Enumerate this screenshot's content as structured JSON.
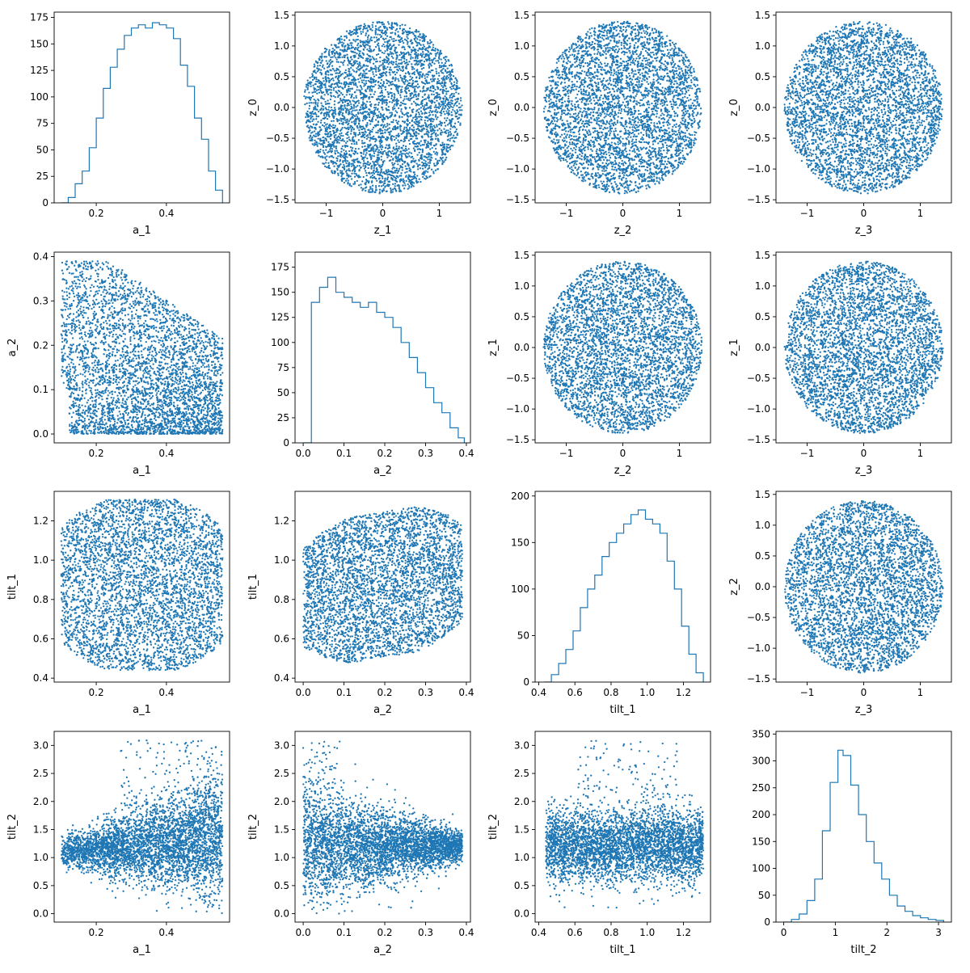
{
  "figure": {
    "background": "#ffffff",
    "accent": "#1f77b4"
  },
  "chart_data": [
    {
      "type": "histogram",
      "row": 0,
      "col": 0,
      "xlabel": "a_1",
      "ylabel": "",
      "xlim": [
        0.08,
        0.58
      ],
      "ylim": [
        0,
        180
      ],
      "xticks": [
        0.2,
        0.4
      ],
      "xtick_labels": [
        "0.2",
        "0.4"
      ],
      "yticks": [
        0,
        25,
        50,
        75,
        100,
        125,
        150,
        175
      ],
      "ytick_labels": [
        "0",
        "25",
        "50",
        "75",
        "100",
        "125",
        "150",
        "175"
      ],
      "x": [
        0.1,
        0.12,
        0.14,
        0.16,
        0.18,
        0.2,
        0.22,
        0.24,
        0.26,
        0.28,
        0.3,
        0.32,
        0.34,
        0.36,
        0.38,
        0.4,
        0.42,
        0.44,
        0.46,
        0.48,
        0.5,
        0.52,
        0.54,
        0.56
      ],
      "values": [
        0,
        5,
        18,
        30,
        52,
        80,
        108,
        128,
        145,
        158,
        165,
        168,
        165,
        170,
        168,
        165,
        155,
        130,
        110,
        80,
        60,
        30,
        12,
        0
      ]
    },
    {
      "type": "scatter",
      "row": 0,
      "col": 1,
      "xlabel": "z_1",
      "ylabel": "z_0",
      "xlim": [
        -1.55,
        1.55
      ],
      "ylim": [
        -1.55,
        1.55
      ],
      "xticks": [
        -1,
        0,
        1
      ],
      "xtick_labels": [
        "−1",
        "0",
        "1"
      ],
      "yticks": [
        -1.5,
        -1.0,
        -0.5,
        0.0,
        0.5,
        1.0,
        1.5
      ],
      "ytick_labels": [
        "−1.5",
        "−1.0",
        "−0.5",
        "0.0",
        "0.5",
        "1.0",
        "1.5"
      ],
      "x_range": [
        -1.4,
        1.4
      ],
      "y_range": [
        -1.4,
        1.4
      ],
      "shape": "disk",
      "count": 4000
    },
    {
      "type": "scatter",
      "row": 0,
      "col": 2,
      "xlabel": "z_2",
      "ylabel": "z_0",
      "xlim": [
        -1.55,
        1.55
      ],
      "ylim": [
        -1.55,
        1.55
      ],
      "xticks": [
        -1,
        0,
        1
      ],
      "xtick_labels": [
        "−1",
        "0",
        "1"
      ],
      "yticks": [
        -1.5,
        -1.0,
        -0.5,
        0.0,
        0.5,
        1.0,
        1.5
      ],
      "ytick_labels": [
        "−1.5",
        "−1.0",
        "−0.5",
        "0.0",
        "0.5",
        "1.0",
        "1.5"
      ],
      "x_range": [
        -1.4,
        1.4
      ],
      "y_range": [
        -1.4,
        1.4
      ],
      "shape": "disk",
      "count": 4000
    },
    {
      "type": "scatter",
      "row": 0,
      "col": 3,
      "xlabel": "z_3",
      "ylabel": "z_0",
      "xlim": [
        -1.55,
        1.55
      ],
      "ylim": [
        -1.55,
        1.55
      ],
      "xticks": [
        -1,
        0,
        1
      ],
      "xtick_labels": [
        "−1",
        "0",
        "1"
      ],
      "yticks": [
        -1.5,
        -1.0,
        -0.5,
        0.0,
        0.5,
        1.0,
        1.5
      ],
      "ytick_labels": [
        "−1.5",
        "−1.0",
        "−0.5",
        "0.0",
        "0.5",
        "1.0",
        "1.5"
      ],
      "x_range": [
        -1.4,
        1.4
      ],
      "y_range": [
        -1.4,
        1.4
      ],
      "shape": "disk",
      "count": 4000
    },
    {
      "type": "scatter",
      "row": 1,
      "col": 0,
      "xlabel": "a_1",
      "ylabel": "a_2",
      "xlim": [
        0.08,
        0.58
      ],
      "ylim": [
        -0.02,
        0.41
      ],
      "xticks": [
        0.2,
        0.4
      ],
      "xtick_labels": [
        "0.2",
        "0.4"
      ],
      "yticks": [
        0.0,
        0.1,
        0.2,
        0.3,
        0.4
      ],
      "ytick_labels": [
        "0.0",
        "0.1",
        "0.2",
        "0.3",
        "0.4"
      ],
      "x_range": [
        0.1,
        0.56
      ],
      "y_range": [
        0.0,
        0.39
      ],
      "shape": "wedge",
      "count": 4000
    },
    {
      "type": "histogram",
      "row": 1,
      "col": 1,
      "xlabel": "a_2",
      "ylabel": "",
      "xlim": [
        -0.02,
        0.41
      ],
      "ylim": [
        0,
        190
      ],
      "xticks": [
        0.0,
        0.1,
        0.2,
        0.3,
        0.4
      ],
      "xtick_labels": [
        "0.0",
        "0.1",
        "0.2",
        "0.3",
        "0.4"
      ],
      "yticks": [
        0,
        25,
        50,
        75,
        100,
        125,
        150,
        175
      ],
      "ytick_labels": [
        "0",
        "25",
        "50",
        "75",
        "100",
        "125",
        "150",
        "175"
      ],
      "x": [
        0.0,
        0.02,
        0.04,
        0.06,
        0.08,
        0.1,
        0.12,
        0.14,
        0.16,
        0.18,
        0.2,
        0.22,
        0.24,
        0.26,
        0.28,
        0.3,
        0.32,
        0.34,
        0.36,
        0.38,
        0.395
      ],
      "values": [
        0,
        140,
        155,
        165,
        150,
        145,
        140,
        135,
        140,
        130,
        125,
        115,
        100,
        85,
        70,
        55,
        40,
        30,
        15,
        5,
        0
      ]
    },
    {
      "type": "scatter",
      "row": 1,
      "col": 2,
      "xlabel": "z_2",
      "ylabel": "z_1",
      "xlim": [
        -1.55,
        1.55
      ],
      "ylim": [
        -1.55,
        1.55
      ],
      "xticks": [
        -1,
        0,
        1
      ],
      "xtick_labels": [
        "−1",
        "0",
        "1"
      ],
      "yticks": [
        -1.5,
        -1.0,
        -0.5,
        0.0,
        0.5,
        1.0,
        1.5
      ],
      "ytick_labels": [
        "−1.5",
        "−1.0",
        "−0.5",
        "0.0",
        "0.5",
        "1.0",
        "1.5"
      ],
      "x_range": [
        -1.4,
        1.4
      ],
      "y_range": [
        -1.4,
        1.4
      ],
      "shape": "disk",
      "count": 4000
    },
    {
      "type": "scatter",
      "row": 1,
      "col": 3,
      "xlabel": "z_3",
      "ylabel": "z_1",
      "xlim": [
        -1.55,
        1.55
      ],
      "ylim": [
        -1.55,
        1.55
      ],
      "xticks": [
        -1,
        0,
        1
      ],
      "xtick_labels": [
        "−1",
        "0",
        "1"
      ],
      "yticks": [
        -1.5,
        -1.0,
        -0.5,
        0.0,
        0.5,
        1.0,
        1.5
      ],
      "ytick_labels": [
        "−1.5",
        "−1.0",
        "−0.5",
        "0.0",
        "0.5",
        "1.0",
        "1.5"
      ],
      "x_range": [
        -1.4,
        1.4
      ],
      "y_range": [
        -1.4,
        1.4
      ],
      "shape": "disk",
      "count": 4000
    },
    {
      "type": "scatter",
      "row": 2,
      "col": 0,
      "xlabel": "a_1",
      "ylabel": "tilt_1",
      "xlim": [
        0.08,
        0.58
      ],
      "ylim": [
        0.38,
        1.35
      ],
      "xticks": [
        0.2,
        0.4
      ],
      "xtick_labels": [
        "0.2",
        "0.4"
      ],
      "yticks": [
        0.4,
        0.6,
        0.8,
        1.0,
        1.2
      ],
      "ytick_labels": [
        "0.4",
        "0.6",
        "0.8",
        "1.0",
        "1.2"
      ],
      "x_range": [
        0.1,
        0.56
      ],
      "y_range": [
        0.44,
        1.31
      ],
      "shape": "blob",
      "count": 4000
    },
    {
      "type": "scatter",
      "row": 2,
      "col": 1,
      "xlabel": "a_2",
      "ylabel": "tilt_1",
      "xlim": [
        -0.02,
        0.41
      ],
      "ylim": [
        0.38,
        1.35
      ],
      "xticks": [
        0.0,
        0.1,
        0.2,
        0.3,
        0.4
      ],
      "xtick_labels": [
        "0.0",
        "0.1",
        "0.2",
        "0.3",
        "0.4"
      ],
      "yticks": [
        0.4,
        0.6,
        0.8,
        1.0,
        1.2
      ],
      "ytick_labels": [
        "0.4",
        "0.6",
        "0.8",
        "1.0",
        "1.2"
      ],
      "x_range": [
        0.0,
        0.39
      ],
      "y_range": [
        0.44,
        1.31
      ],
      "shape": "rising-blob",
      "count": 4000
    },
    {
      "type": "histogram",
      "row": 2,
      "col": 2,
      "xlabel": "tilt_1",
      "ylabel": "",
      "xlim": [
        0.38,
        1.35
      ],
      "ylim": [
        0,
        205
      ],
      "xticks": [
        0.4,
        0.6,
        0.8,
        1.0,
        1.2
      ],
      "xtick_labels": [
        "0.4",
        "0.6",
        "0.8",
        "1.0",
        "1.2"
      ],
      "yticks": [
        0,
        50,
        100,
        150,
        200
      ],
      "ytick_labels": [
        "0",
        "50",
        "100",
        "150",
        "200"
      ],
      "x": [
        0.43,
        0.47,
        0.51,
        0.55,
        0.59,
        0.63,
        0.67,
        0.71,
        0.75,
        0.79,
        0.83,
        0.87,
        0.91,
        0.95,
        0.99,
        1.03,
        1.07,
        1.11,
        1.15,
        1.19,
        1.23,
        1.27,
        1.31
      ],
      "values": [
        0,
        8,
        20,
        35,
        55,
        80,
        100,
        115,
        135,
        150,
        160,
        170,
        180,
        185,
        175,
        170,
        160,
        130,
        100,
        60,
        30,
        10,
        0
      ]
    },
    {
      "type": "scatter",
      "row": 2,
      "col": 3,
      "xlabel": "z_3",
      "ylabel": "z_2",
      "xlim": [
        -1.55,
        1.55
      ],
      "ylim": [
        -1.55,
        1.55
      ],
      "xticks": [
        -1,
        0,
        1
      ],
      "xtick_labels": [
        "−1",
        "0",
        "1"
      ],
      "yticks": [
        -1.5,
        -1.0,
        -0.5,
        0.0,
        0.5,
        1.0,
        1.5
      ],
      "ytick_labels": [
        "−1.5",
        "−1.0",
        "−0.5",
        "0.0",
        "0.5",
        "1.0",
        "1.5"
      ],
      "x_range": [
        -1.4,
        1.4
      ],
      "y_range": [
        -1.4,
        1.4
      ],
      "shape": "disk",
      "count": 4000
    },
    {
      "type": "scatter",
      "row": 3,
      "col": 0,
      "xlabel": "a_1",
      "ylabel": "tilt_2",
      "xlim": [
        0.08,
        0.58
      ],
      "ylim": [
        -0.15,
        3.25
      ],
      "xticks": [
        0.2,
        0.4
      ],
      "xtick_labels": [
        "0.2",
        "0.4"
      ],
      "yticks": [
        0.0,
        0.5,
        1.0,
        1.5,
        2.0,
        2.5,
        3.0
      ],
      "ytick_labels": [
        "0.0",
        "0.5",
        "1.0",
        "1.5",
        "2.0",
        "2.5",
        "3.0"
      ],
      "x_range": [
        0.1,
        0.56
      ],
      "y_range": [
        0.0,
        3.1
      ],
      "shape": "funnel-right",
      "count": 4000
    },
    {
      "type": "scatter",
      "row": 3,
      "col": 1,
      "xlabel": "a_2",
      "ylabel": "tilt_2",
      "xlim": [
        -0.02,
        0.41
      ],
      "ylim": [
        -0.15,
        3.25
      ],
      "xticks": [
        0.0,
        0.1,
        0.2,
        0.3,
        0.4
      ],
      "xtick_labels": [
        "0.0",
        "0.1",
        "0.2",
        "0.3",
        "0.4"
      ],
      "yticks": [
        0.0,
        0.5,
        1.0,
        1.5,
        2.0,
        2.5,
        3.0
      ],
      "ytick_labels": [
        "0.0",
        "0.5",
        "1.0",
        "1.5",
        "2.0",
        "2.5",
        "3.0"
      ],
      "x_range": [
        0.0,
        0.39
      ],
      "y_range": [
        0.0,
        3.1
      ],
      "shape": "funnel-left",
      "count": 4000
    },
    {
      "type": "scatter",
      "row": 3,
      "col": 2,
      "xlabel": "tilt_1",
      "ylabel": "tilt_2",
      "xlim": [
        0.38,
        1.35
      ],
      "ylim": [
        -0.15,
        3.25
      ],
      "xticks": [
        0.4,
        0.6,
        0.8,
        1.0,
        1.2
      ],
      "xtick_labels": [
        "0.4",
        "0.6",
        "0.8",
        "1.0",
        "1.2"
      ],
      "yticks": [
        0.0,
        0.5,
        1.0,
        1.5,
        2.0,
        2.5,
        3.0
      ],
      "ytick_labels": [
        "0.0",
        "0.5",
        "1.0",
        "1.5",
        "2.0",
        "2.5",
        "3.0"
      ],
      "x_range": [
        0.44,
        1.31
      ],
      "y_range": [
        0.0,
        3.1
      ],
      "shape": "band",
      "count": 4000
    },
    {
      "type": "histogram",
      "row": 3,
      "col": 3,
      "xlabel": "tilt_2",
      "ylabel": "",
      "xlim": [
        -0.15,
        3.25
      ],
      "ylim": [
        0,
        355
      ],
      "xticks": [
        0,
        1,
        2,
        3
      ],
      "xtick_labels": [
        "0",
        "1",
        "2",
        "3"
      ],
      "yticks": [
        0,
        50,
        100,
        150,
        200,
        250,
        300,
        350
      ],
      "ytick_labels": [
        "0",
        "50",
        "100",
        "150",
        "200",
        "250",
        "300",
        "350"
      ],
      "x": [
        0.0,
        0.15,
        0.3,
        0.45,
        0.6,
        0.75,
        0.9,
        1.05,
        1.15,
        1.3,
        1.45,
        1.6,
        1.75,
        1.9,
        2.05,
        2.2,
        2.35,
        2.5,
        2.65,
        2.8,
        2.95,
        3.1
      ],
      "values": [
        0,
        5,
        15,
        40,
        80,
        170,
        260,
        320,
        310,
        255,
        200,
        150,
        110,
        80,
        50,
        30,
        20,
        12,
        8,
        5,
        3,
        0
      ]
    }
  ]
}
